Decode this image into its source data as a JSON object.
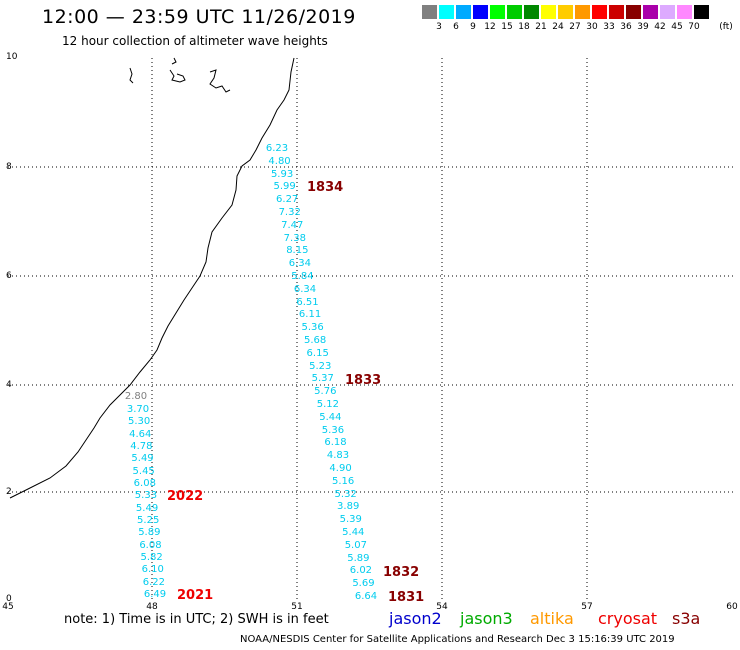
{
  "header": {
    "title": "12:00 — 23:59 UTC 11/26/2019",
    "subtitle": "12 hour collection of altimeter wave heights"
  },
  "legend": {
    "colors": [
      "#808080",
      "#00ffff",
      "#00aaff",
      "#0000ff",
      "#00ff00",
      "#00cc00",
      "#008800",
      "#ffff00",
      "#ffcc00",
      "#ff9900",
      "#ff0000",
      "#cc0000",
      "#880000",
      "#aa00aa",
      "#ddaaff",
      "#ff88ff",
      "#000000"
    ],
    "labels": [
      "3",
      "6",
      "9",
      "12",
      "15",
      "18",
      "21",
      "24",
      "27",
      "30",
      "33",
      "36",
      "39",
      "42",
      "45",
      "70"
    ],
    "unit": "(ft)"
  },
  "axes": {
    "y_ticks": [
      "10",
      "8",
      "6",
      "4",
      "2",
      "0"
    ],
    "x_ticks": [
      "45",
      "48",
      "51",
      "54",
      "57",
      "60"
    ]
  },
  "passes": [
    {
      "label": "1834",
      "color": "#880000"
    },
    {
      "label": "1833",
      "color": "#880000"
    },
    {
      "label": "2022",
      "color": "#ee0000"
    },
    {
      "label": "2021",
      "color": "#ee0000"
    },
    {
      "label": "1832",
      "color": "#880000"
    },
    {
      "label": "1831",
      "color": "#880000"
    }
  ],
  "track_a_values": [
    "6.23",
    "4.80",
    "5.93",
    "5.99",
    "6.27",
    "7.32",
    "7.47",
    "7.38",
    "8.15",
    "6.34",
    "5.84",
    "6.34",
    "6.51",
    "6.11",
    "5.36",
    "5.68",
    "6.15",
    "5.23",
    "5.37",
    "5.76",
    "5.12",
    "5.44",
    "5.36",
    "6.18",
    "4.83",
    "4.90",
    "5.16",
    "5.32",
    "3.89",
    "5.39",
    "5.44",
    "5.07",
    "5.89",
    "6.02",
    "5.69",
    "6.64"
  ],
  "track_b_first": "2.80",
  "track_b_values": [
    "3.70",
    "5.30",
    "4.64",
    "4.78",
    "5.49",
    "5.45",
    "6.08",
    "5.33",
    "5.49",
    "5.25",
    "5.89",
    "6.08",
    "5.82",
    "6.10",
    "6.22",
    "6.49"
  ],
  "footer": {
    "note": "note:  1) Time is in UTC;  2) SWH is in feet",
    "satellites": [
      {
        "name": "jason2",
        "color": "#0000cc"
      },
      {
        "name": "jason3",
        "color": "#00aa00"
      },
      {
        "name": "altika",
        "color": "#ff9900"
      },
      {
        "name": "cryosat",
        "color": "#ee0000"
      },
      {
        "name": "s3a",
        "color": "#880000"
      }
    ],
    "credit": "NOAA/NESDIS Center for Satellite Applications and Research      Dec  3 15:16:39 UTC 2019"
  }
}
